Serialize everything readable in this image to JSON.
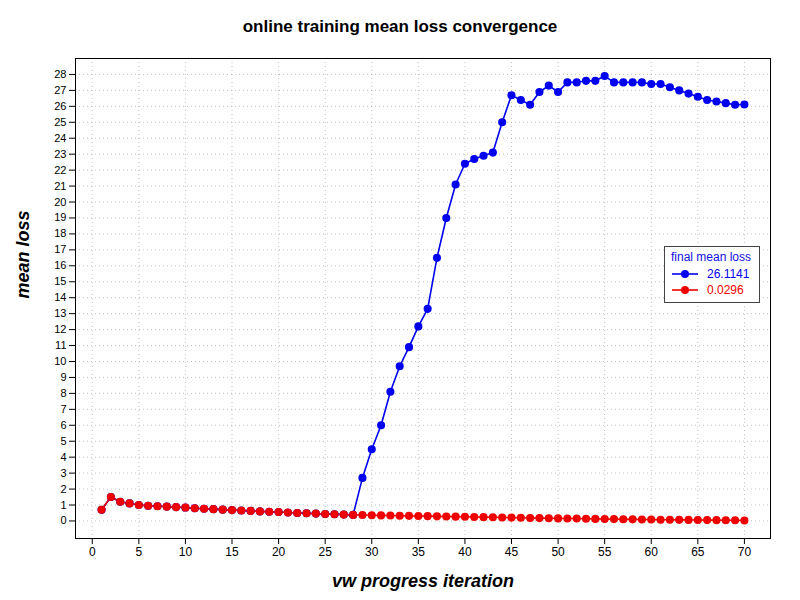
{
  "chart_data": {
    "type": "line",
    "title": "online training mean loss convergence",
    "x_label": "vw progress iteration",
    "y_label": "mean loss",
    "x": [
      1,
      2,
      3,
      4,
      5,
      6,
      7,
      8,
      9,
      10,
      11,
      12,
      13,
      14,
      15,
      16,
      17,
      18,
      19,
      20,
      21,
      22,
      23,
      24,
      25,
      26,
      27,
      28,
      29,
      30,
      31,
      32,
      33,
      34,
      35,
      36,
      37,
      38,
      39,
      40,
      41,
      42,
      43,
      44,
      45,
      46,
      47,
      48,
      49,
      50,
      51,
      52,
      53,
      54,
      55,
      56,
      57,
      58,
      59,
      60,
      61,
      62,
      63,
      64,
      65,
      66,
      67,
      68,
      69,
      70
    ],
    "series": [
      {
        "name": "26.1141",
        "color": "#0000ee",
        "marker": "circle",
        "values": [
          0.7,
          1.5,
          1.2,
          1.1,
          1.0,
          0.95,
          0.92,
          0.9,
          0.87,
          0.84,
          0.8,
          0.77,
          0.74,
          0.71,
          0.68,
          0.66,
          0.63,
          0.6,
          0.58,
          0.56,
          0.53,
          0.5,
          0.48,
          0.46,
          0.44,
          0.42,
          0.4,
          0.38,
          2.7,
          4.5,
          6.0,
          8.1,
          9.7,
          10.9,
          12.2,
          13.3,
          16.5,
          19.0,
          21.1,
          22.4,
          22.7,
          22.9,
          23.1,
          25.0,
          26.7,
          26.4,
          26.1,
          26.9,
          27.3,
          26.9,
          27.5,
          27.5,
          27.6,
          27.6,
          27.9,
          27.5,
          27.5,
          27.5,
          27.5,
          27.4,
          27.4,
          27.2,
          27.0,
          26.8,
          26.6,
          26.4,
          26.3,
          26.2,
          26.1,
          26.1141
        ]
      },
      {
        "name": "0.0296",
        "color": "#ee0000",
        "marker": "circle",
        "values": [
          0.7,
          1.5,
          1.2,
          1.1,
          1.0,
          0.95,
          0.92,
          0.9,
          0.87,
          0.84,
          0.8,
          0.77,
          0.74,
          0.71,
          0.68,
          0.66,
          0.63,
          0.6,
          0.58,
          0.56,
          0.53,
          0.5,
          0.48,
          0.46,
          0.44,
          0.42,
          0.4,
          0.38,
          0.37,
          0.36,
          0.35,
          0.34,
          0.33,
          0.32,
          0.31,
          0.3,
          0.29,
          0.28,
          0.27,
          0.26,
          0.25,
          0.24,
          0.23,
          0.22,
          0.21,
          0.2,
          0.19,
          0.18,
          0.17,
          0.16,
          0.155,
          0.15,
          0.14,
          0.13,
          0.12,
          0.115,
          0.11,
          0.1,
          0.095,
          0.09,
          0.08,
          0.075,
          0.07,
          0.065,
          0.06,
          0.055,
          0.05,
          0.045,
          0.04,
          0.0296
        ]
      }
    ],
    "legend_title": "final mean loss",
    "legend": "right",
    "xlim": [
      -1.8,
      72.8
    ],
    "ylim": [
      -1.1,
      29.0
    ],
    "xticks": [
      0,
      5,
      10,
      15,
      20,
      25,
      30,
      35,
      40,
      45,
      50,
      55,
      60,
      65,
      70
    ],
    "yticks": [
      0,
      1,
      2,
      3,
      4,
      5,
      6,
      7,
      8,
      9,
      10,
      11,
      12,
      13,
      14,
      15,
      16,
      17,
      18,
      19,
      20,
      21,
      22,
      23,
      24,
      25,
      26,
      27,
      28
    ],
    "grid": true
  }
}
